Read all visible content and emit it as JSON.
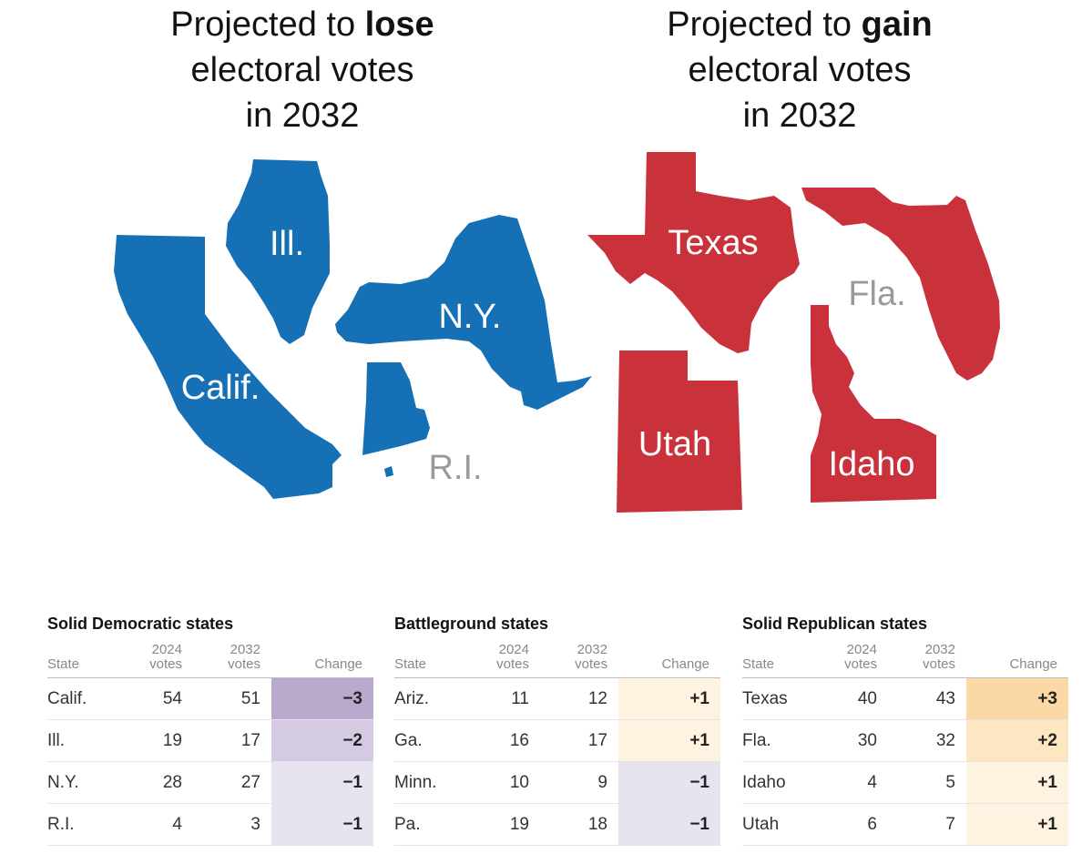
{
  "headings": {
    "lose": {
      "pre": "Projected to ",
      "bold": "lose",
      "line2": "electoral votes",
      "line3": "in 2032"
    },
    "gain": {
      "pre": "Projected to ",
      "bold": "gain",
      "line2": "electoral votes",
      "line3": "in 2032"
    }
  },
  "colors": {
    "lose_state": "#1670b5",
    "gain_state": "#c9323a",
    "small_label": "#9a9a9a",
    "minus3": "#b9a9cc",
    "minus2": "#d4cbe2",
    "minus1": "#e7e4ef",
    "plus3": "#fbd9a6",
    "plus2": "#fde6c2",
    "plus1": "#fef3e1"
  },
  "map": {
    "lose_labels": [
      "Ill.",
      "N.Y.",
      "Calif.",
      "R.I."
    ],
    "gain_labels": [
      "Texas",
      "Fla.",
      "Utah",
      "Idaho"
    ]
  },
  "chart_data": [
    {
      "type": "table",
      "title": "Solid Democratic states",
      "columns": [
        "State",
        "2024 votes",
        "2032 votes",
        "Change"
      ],
      "rows": [
        {
          "state": "Calif.",
          "v2024": "54",
          "v2032": "51",
          "change": "−3",
          "level": -3
        },
        {
          "state": "Ill.",
          "v2024": "19",
          "v2032": "17",
          "change": "−2",
          "level": -2
        },
        {
          "state": "N.Y.",
          "v2024": "28",
          "v2032": "27",
          "change": "−1",
          "level": -1
        },
        {
          "state": "R.I.",
          "v2024": "4",
          "v2032": "3",
          "change": "−1",
          "level": -1
        }
      ]
    },
    {
      "type": "table",
      "title": "Battleground states",
      "columns": [
        "State",
        "2024 votes",
        "2032 votes",
        "Change"
      ],
      "rows": [
        {
          "state": "Ariz.",
          "v2024": "11",
          "v2032": "12",
          "change": "+1",
          "level": 1
        },
        {
          "state": "Ga.",
          "v2024": "16",
          "v2032": "17",
          "change": "+1",
          "level": 1
        },
        {
          "state": "Minn.",
          "v2024": "10",
          "v2032": "9",
          "change": "−1",
          "level": -1
        },
        {
          "state": "Pa.",
          "v2024": "19",
          "v2032": "18",
          "change": "−1",
          "level": -1
        }
      ]
    },
    {
      "type": "table",
      "title": "Solid Republican states",
      "columns": [
        "State",
        "2024 votes",
        "2032 votes",
        "Change"
      ],
      "rows": [
        {
          "state": "Texas",
          "v2024": "40",
          "v2032": "43",
          "change": "+3",
          "level": 3
        },
        {
          "state": "Fla.",
          "v2024": "30",
          "v2032": "32",
          "change": "+2",
          "level": 2
        },
        {
          "state": "Idaho",
          "v2024": "4",
          "v2032": "5",
          "change": "+1",
          "level": 1
        },
        {
          "state": "Utah",
          "v2024": "6",
          "v2032": "7",
          "change": "+1",
          "level": 1
        }
      ]
    }
  ]
}
